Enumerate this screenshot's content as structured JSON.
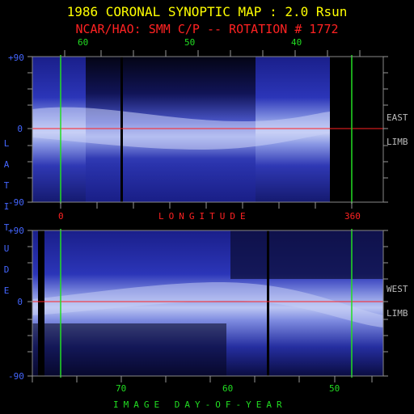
{
  "titles": {
    "line1": "1986 CORONAL SYNOPTIC MAP : 2.0 Rsun",
    "line2": "NCAR/HAO: SMM C/P -- ROTATION # 1772"
  },
  "top_panel": {
    "top_axis_labels": [
      "60",
      "50",
      "40"
    ],
    "bottom_axis_labels": [
      "0",
      "LONGITUDE",
      "360"
    ],
    "lat_labels": [
      "+90",
      "0",
      "-90"
    ],
    "side_labels": [
      "EAST",
      "LIMB"
    ]
  },
  "bottom_panel": {
    "bottom_axis_labels": [
      "70",
      "60",
      "50"
    ],
    "lat_labels": [
      "+90",
      "0",
      "-90"
    ],
    "side_labels": [
      "WEST",
      "LIMB"
    ],
    "x_title": "IMAGE DAY-OF-YEAR"
  },
  "left_axis_title": [
    "L",
    "A",
    "T",
    "I",
    "T",
    "U",
    "D",
    "E"
  ],
  "colors": {
    "title": "#ffff00",
    "subtitle": "#ff2222",
    "day_axis": "#22dd22",
    "latitude_axis": "#4466ff",
    "equator_line": "#ff2222",
    "marker_lines": "#22dd22"
  }
}
